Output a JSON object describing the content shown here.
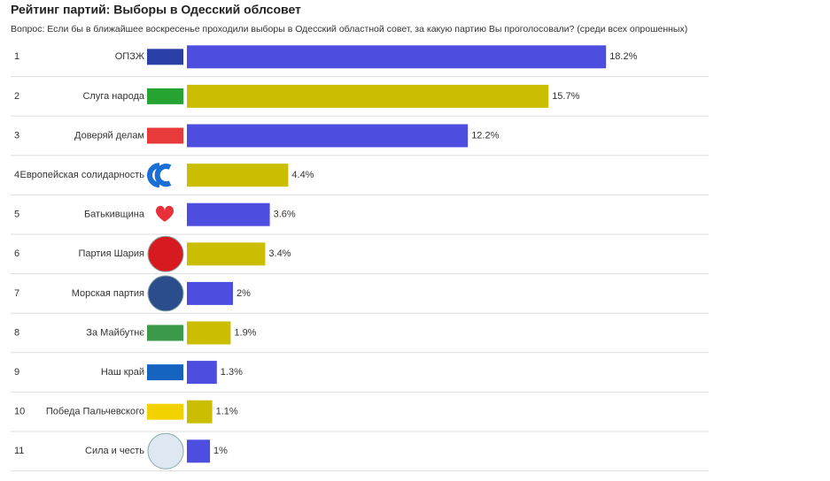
{
  "chart_data": {
    "type": "bar",
    "title": "Рейтинг партий: Выборы в Одесский облсовет",
    "subtitle": "Вопрос: Если бы в ближайшее воскресенье проходили выборы в Одесский областной совет, за какую партию Вы проголосовали? (среди всех опрошенных)",
    "ranks": [
      1,
      2,
      3,
      4,
      5,
      6,
      7,
      8,
      9,
      10,
      11
    ],
    "categories": [
      "ОПЗЖ",
      "Слуга народа",
      "Доверяй делам",
      "Европейская солидарность",
      "Батькивщина",
      "Партия Шария",
      "Морская партия",
      "За Майбутнє",
      "Наш край",
      "Победа Пальчевского",
      "Сила и честь"
    ],
    "values": [
      18.2,
      15.7,
      12.2,
      4.4,
      3.6,
      3.4,
      2,
      1.9,
      1.3,
      1.1,
      1
    ],
    "value_labels": [
      "18.2%",
      "15.7%",
      "12.2%",
      "4.4%",
      "3.6%",
      "3.4%",
      "2%",
      "1.9%",
      "1.3%",
      "1.1%",
      "1%"
    ],
    "colors": [
      "#4d4de0",
      "#cbbd00",
      "#4d4de0",
      "#cbbd00",
      "#4d4de0",
      "#cbbd00",
      "#4d4de0",
      "#cbbd00",
      "#4d4de0",
      "#cbbd00",
      "#4d4de0"
    ]
  }
}
